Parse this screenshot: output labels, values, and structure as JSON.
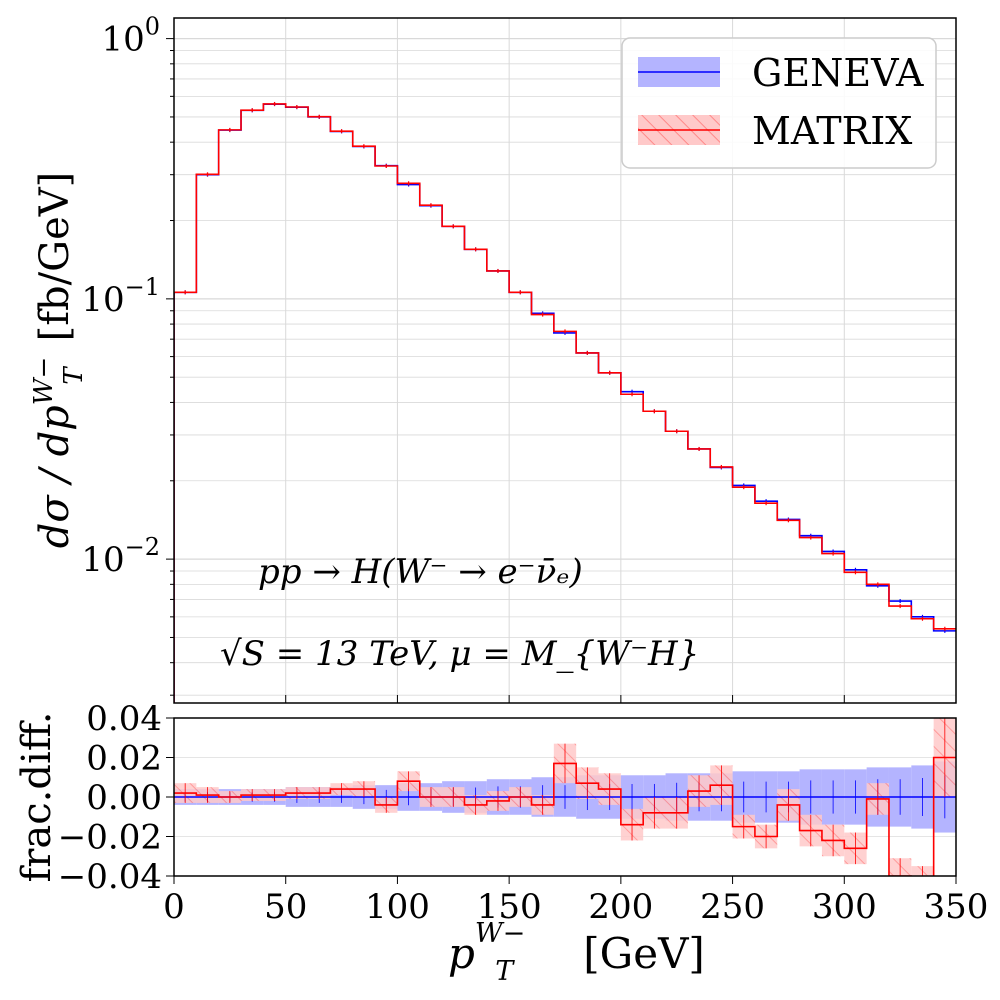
{
  "chart_data": [
    {
      "type": "line",
      "panel": "main",
      "ylabel_text": "dσ / dp",
      "ylabel_sup": "W−",
      "ylabel_sub": "T",
      "ylabel_unit": "[fb/GeV]",
      "yscale": "log",
      "ylim": [
        0.0028,
        1.2
      ],
      "xlim": [
        0,
        350
      ],
      "grid": true,
      "y_tick_labels": [
        "10",
        "10",
        "10"
      ],
      "y_tick_exps": [
        "0",
        "−1",
        "−2"
      ],
      "legend_position": "top-right",
      "annotations": {
        "process": "pp → H(W⁻ → e⁻ν̄ₑ)",
        "setup": "√S = 13 TeV,  μ = M_{W⁻H}"
      },
      "bin_edges": [
        0,
        10,
        20,
        30,
        40,
        50,
        60,
        70,
        80,
        90,
        100,
        110,
        120,
        130,
        140,
        150,
        160,
        170,
        180,
        190,
        200,
        210,
        220,
        230,
        240,
        250,
        260,
        270,
        280,
        290,
        300,
        310,
        320,
        330,
        340,
        350
      ],
      "series": [
        {
          "name": "GENEVA",
          "color": "#0000ff",
          "band_color": "#b4b4ff",
          "values": [
            0.106,
            0.3,
            0.445,
            0.53,
            0.56,
            0.545,
            0.5,
            0.44,
            0.385,
            0.325,
            0.275,
            0.228,
            0.19,
            0.155,
            0.128,
            0.106,
            0.088,
            0.074,
            0.062,
            0.052,
            0.044,
            0.037,
            0.031,
            0.0265,
            0.0225,
            0.0192,
            0.0167,
            0.0142,
            0.0123,
            0.0107,
            0.0091,
            0.0079,
            0.0069,
            0.006,
            0.0053
          ]
        },
        {
          "name": "MATRIX",
          "color": "#ff0000",
          "band_color": "#ff9999",
          "values": [
            0.106,
            0.301,
            0.446,
            0.531,
            0.561,
            0.546,
            0.501,
            0.441,
            0.386,
            0.324,
            0.278,
            0.229,
            0.19,
            0.155,
            0.128,
            0.106,
            0.087,
            0.075,
            0.062,
            0.052,
            0.043,
            0.037,
            0.031,
            0.0265,
            0.0226,
            0.0189,
            0.0164,
            0.0141,
            0.0121,
            0.0105,
            0.0089,
            0.008,
            0.0066,
            0.0059,
            0.0054
          ]
        }
      ]
    },
    {
      "type": "line",
      "panel": "ratio",
      "ylabel": "frac.diff.",
      "xlabel_text": "p",
      "xlabel_sup": "W−",
      "xlabel_sub": "T",
      "xlabel_unit": "[GeV]",
      "ylim": [
        -0.04,
        0.04
      ],
      "xlim": [
        0,
        350
      ],
      "y_ticks": [
        "0.04",
        "0.02",
        "0.00",
        "−0.02",
        "−0.04"
      ],
      "x_ticks": [
        "0",
        "50",
        "100",
        "150",
        "200",
        "250",
        "300",
        "350"
      ],
      "bin_edges": [
        0,
        10,
        20,
        30,
        40,
        50,
        60,
        70,
        80,
        90,
        100,
        110,
        120,
        130,
        140,
        150,
        160,
        170,
        180,
        190,
        200,
        210,
        220,
        230,
        240,
        250,
        260,
        270,
        280,
        290,
        300,
        310,
        320,
        330,
        340,
        350
      ],
      "geneva_band_halfwidth": [
        0.004,
        0.004,
        0.004,
        0.004,
        0.004,
        0.005,
        0.005,
        0.005,
        0.006,
        0.006,
        0.007,
        0.007,
        0.008,
        0.008,
        0.009,
        0.009,
        0.01,
        0.01,
        0.011,
        0.011,
        0.011,
        0.011,
        0.012,
        0.012,
        0.012,
        0.013,
        0.013,
        0.013,
        0.014,
        0.014,
        0.014,
        0.015,
        0.015,
        0.016,
        0.018
      ],
      "series": [
        {
          "name": "MATRIX",
          "values": [
            0.002,
            0.001,
            0.0,
            0.001,
            0.001,
            0.002,
            0.002,
            0.004,
            0.004,
            -0.004,
            0.008,
            0.0,
            0.0,
            -0.004,
            -0.002,
            0.0,
            -0.004,
            0.017,
            0.007,
            0.004,
            -0.014,
            -0.008,
            -0.008,
            0.003,
            0.006,
            -0.015,
            -0.02,
            -0.004,
            -0.017,
            -0.022,
            -0.026,
            -0.001,
            -0.04,
            -0.045,
            0.02
          ],
          "band_halfwidth": [
            0.005,
            0.004,
            0.003,
            0.003,
            0.003,
            0.003,
            0.003,
            0.003,
            0.004,
            0.004,
            0.005,
            0.005,
            0.005,
            0.005,
            0.005,
            0.005,
            0.005,
            0.01,
            0.008,
            0.008,
            0.008,
            0.008,
            0.008,
            0.008,
            0.01,
            0.006,
            0.006,
            0.008,
            0.008,
            0.008,
            0.008,
            0.008,
            0.009,
            0.01,
            0.02
          ]
        }
      ]
    }
  ]
}
